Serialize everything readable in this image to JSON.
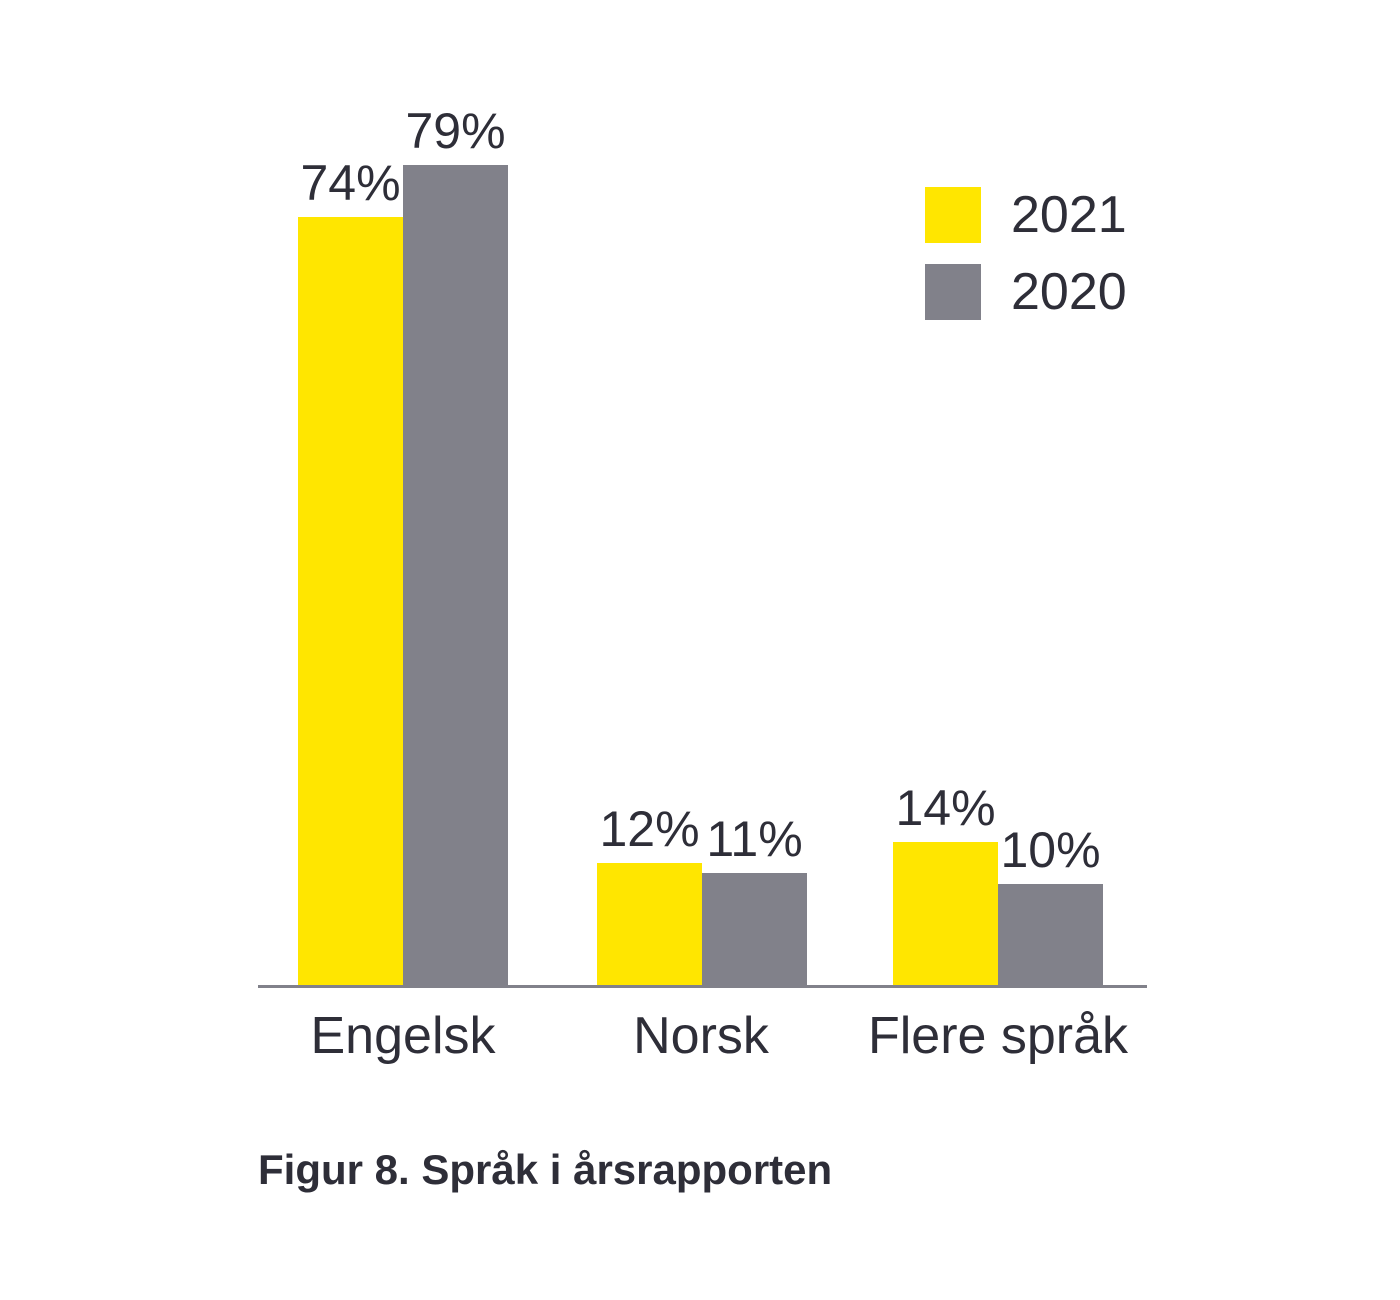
{
  "figure": {
    "caption": "Figur 8. Språk i årsrapporten"
  },
  "chart_data": {
    "type": "bar",
    "title": "Figur 8. Språk i årsrapporten",
    "categories": [
      "Engelsk",
      "Norsk",
      "Flere språk"
    ],
    "series": [
      {
        "name": "2021",
        "color": "#FFE600",
        "values": [
          74,
          12,
          14
        ],
        "labels": [
          "74%",
          "12%",
          "14%"
        ]
      },
      {
        "name": "2020",
        "color": "#81818A",
        "values": [
          79,
          11,
          10
        ],
        "labels": [
          "79%",
          "11%",
          "10%"
        ]
      }
    ],
    "value_suffix": "%",
    "ylim": [
      0,
      100
    ],
    "grid": false,
    "legend_position": "top-right",
    "axis_color": "#81818A",
    "text_color": "#2E2E38",
    "background_color": "#FFFFFF"
  }
}
